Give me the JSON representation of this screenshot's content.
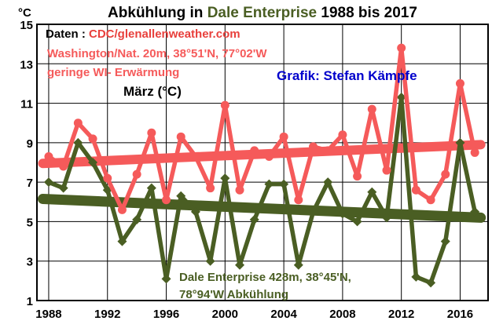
{
  "chart_data": {
    "type": "line",
    "title_parts": [
      {
        "text": "Abkühlung in ",
        "color": "#000000"
      },
      {
        "text": "Dale Enterprise",
        "color": "#4a5e23"
      },
      {
        "text": " 1988 bis 2017",
        "color": "#000000"
      }
    ],
    "ylabel": "°C",
    "ylim": [
      1,
      15
    ],
    "yticks": [
      1,
      3,
      5,
      7,
      9,
      11,
      13,
      15
    ],
    "xlim": [
      1987.2,
      2017.9
    ],
    "xticks": [
      1988,
      1992,
      1996,
      2000,
      2004,
      2008,
      2012,
      2016
    ],
    "grid": true,
    "annotations": {
      "source_label": "Daten : ",
      "source_value": "CDC/glenallenweather.com",
      "washington_line1": "Washington/Nat. 20m, 38°51'N, 77°02'W",
      "washington_line2": "geringe WI- Erwärmung",
      "credit": "Grafik: Stefan Kämpfe",
      "month": "März (°C)",
      "dale_line1": "Dale Enterprise 428m, 38°45'N,",
      "dale_line2": "78°94'W  Abkühlung"
    },
    "colors": {
      "washington": "#f55a5a",
      "dale": "#4a5e23",
      "credit": "#0000cc",
      "source_value": "#e8403c"
    },
    "x": [
      1988,
      1989,
      1990,
      1991,
      1992,
      1993,
      1994,
      1995,
      1996,
      1997,
      1998,
      1999,
      2000,
      2001,
      2002,
      2003,
      2004,
      2005,
      2006,
      2007,
      2008,
      2009,
      2010,
      2011,
      2012,
      2013,
      2014,
      2015,
      2016,
      2017
    ],
    "series": [
      {
        "name": "Washington/Nat.",
        "values": [
          8.3,
          7.8,
          10.0,
          9.2,
          7.2,
          5.6,
          7.4,
          9.5,
          6.1,
          9.3,
          8.3,
          6.7,
          10.9,
          6.6,
          8.6,
          8.3,
          9.3,
          6.1,
          8.8,
          8.6,
          9.4,
          7.3,
          10.7,
          7.6,
          13.8,
          6.6,
          6.1,
          7.4,
          12.0,
          8.5
        ],
        "trend": [
          7.95,
          8.9
        ]
      },
      {
        "name": "Dale Enterprise",
        "values": [
          7.0,
          6.7,
          9.0,
          8.0,
          6.6,
          4.0,
          5.1,
          6.7,
          2.1,
          6.3,
          5.5,
          3.0,
          7.2,
          2.8,
          5.1,
          6.9,
          6.9,
          2.8,
          5.5,
          7.0,
          5.4,
          5.0,
          6.5,
          5.2,
          11.3,
          2.2,
          1.9,
          4.0,
          9.0,
          5.5
        ],
        "trend": [
          6.15,
          5.2
        ]
      }
    ]
  }
}
